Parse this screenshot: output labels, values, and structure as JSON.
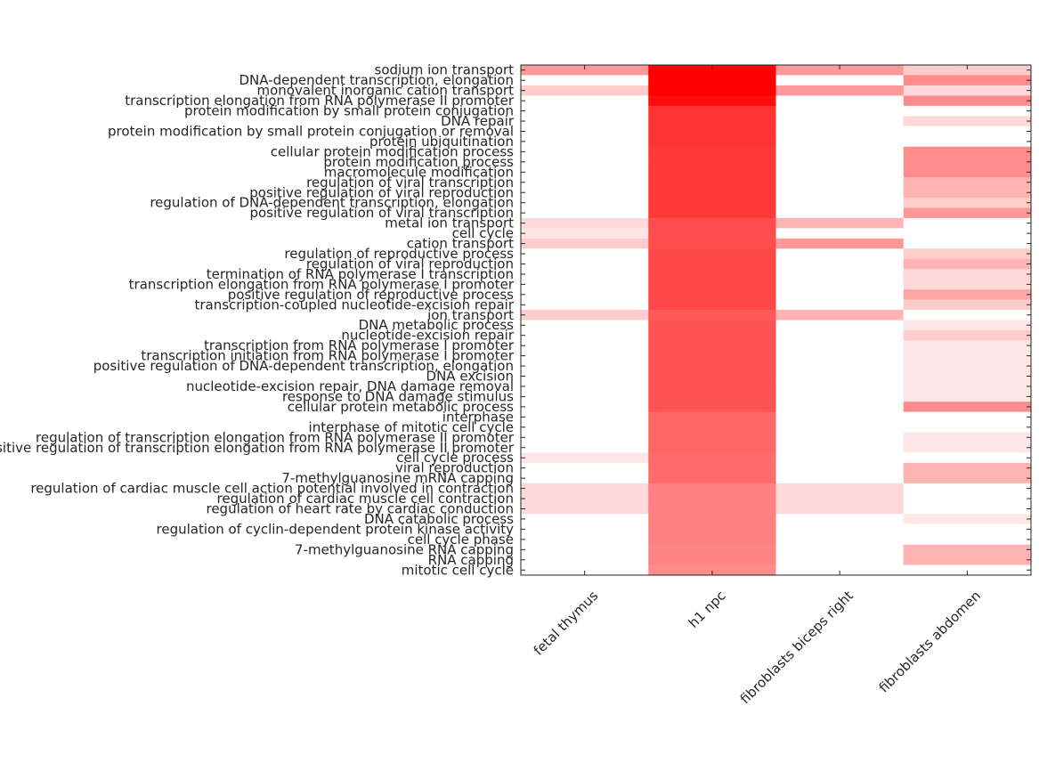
{
  "chart_data": {
    "type": "heatmap",
    "title": "",
    "xlabel": "",
    "ylabel": "",
    "colormap": {
      "low": "#ffffff",
      "high": "#ff0000"
    },
    "value_range": [
      0,
      1
    ],
    "columns": [
      "fetal thymus",
      "h1 npc",
      "fibroblasts biceps right",
      "fibroblasts abdomen"
    ],
    "rows": [
      "sodium ion transport",
      "DNA-dependent transcription, elongation",
      "monovalent inorganic cation transport",
      "transcription elongation from RNA polymerase II promoter",
      "protein modification by small protein conjugation",
      "DNA repair",
      "protein modification by small protein conjugation or removal",
      "protein ubiquitination",
      "cellular protein modification process",
      "protein modification process",
      "macromolecule modification",
      "regulation of viral transcription",
      "positive regulation of viral reproduction",
      "regulation of DNA-dependent transcription, elongation",
      "positive regulation of viral transcription",
      "metal ion transport",
      "cell cycle",
      "cation transport",
      "regulation of reproductive process",
      "regulation of viral reproduction",
      "termination of RNA polymerase I transcription",
      "transcription elongation from RNA polymerase I promoter",
      "positive regulation of reproductive process",
      "transcription-coupled nucleotide-excision repair",
      "ion transport",
      "DNA metabolic process",
      "nucleotide-excision repair",
      "transcription from RNA polymerase I promoter",
      "transcription initiation from RNA polymerase I promoter",
      "positive regulation of DNA-dependent transcription, elongation",
      "DNA excision",
      "nucleotide-excision repair, DNA damage removal",
      "response to DNA damage stimulus",
      "cellular protein metabolic process",
      "interphase",
      "interphase of mitotic cell cycle",
      "regulation of transcription elongation from RNA polymerase II promoter",
      "positive regulation of transcription elongation from RNA polymerase II promoter",
      "cell cycle process",
      "viral reproduction",
      "7-methylguanosine mRNA capping",
      "regulation of cardiac muscle cell action potential involved in contraction",
      "regulation of cardiac muscle cell contraction",
      "regulation of heart rate by cardiac conduction",
      "DNA catabolic process",
      "regulation of cyclin-dependent protein kinase activity",
      "cell cycle phase",
      "7-methylguanosine RNA capping",
      "RNA capping",
      "mitotic cell cycle"
    ],
    "values": [
      [
        0.4,
        1.0,
        0.4,
        0.2
      ],
      [
        0.0,
        1.0,
        0.0,
        0.45
      ],
      [
        0.2,
        1.0,
        0.4,
        0.15
      ],
      [
        0.0,
        0.95,
        0.0,
        0.45
      ],
      [
        0.0,
        0.8,
        0.0,
        0.0
      ],
      [
        0.0,
        0.8,
        0.0,
        0.15
      ],
      [
        0.0,
        0.8,
        0.0,
        0.0
      ],
      [
        0.0,
        0.8,
        0.0,
        0.0
      ],
      [
        0.0,
        0.78,
        0.0,
        0.45
      ],
      [
        0.0,
        0.78,
        0.0,
        0.45
      ],
      [
        0.0,
        0.78,
        0.0,
        0.45
      ],
      [
        0.0,
        0.78,
        0.0,
        0.3
      ],
      [
        0.0,
        0.78,
        0.0,
        0.3
      ],
      [
        0.0,
        0.78,
        0.0,
        0.2
      ],
      [
        0.0,
        0.78,
        0.0,
        0.4
      ],
      [
        0.15,
        0.7,
        0.3,
        0.0
      ],
      [
        0.1,
        0.7,
        0.0,
        0.0
      ],
      [
        0.2,
        0.7,
        0.4,
        0.0
      ],
      [
        0.0,
        0.72,
        0.0,
        0.2
      ],
      [
        0.0,
        0.72,
        0.0,
        0.3
      ],
      [
        0.0,
        0.72,
        0.0,
        0.15
      ],
      [
        0.0,
        0.72,
        0.0,
        0.15
      ],
      [
        0.0,
        0.72,
        0.0,
        0.35
      ],
      [
        0.0,
        0.72,
        0.0,
        0.2
      ],
      [
        0.2,
        0.65,
        0.3,
        0.0
      ],
      [
        0.0,
        0.68,
        0.0,
        0.1
      ],
      [
        0.0,
        0.68,
        0.0,
        0.2
      ],
      [
        0.0,
        0.68,
        0.0,
        0.1
      ],
      [
        0.0,
        0.68,
        0.0,
        0.1
      ],
      [
        0.0,
        0.68,
        0.0,
        0.1
      ],
      [
        0.0,
        0.68,
        0.0,
        0.1
      ],
      [
        0.0,
        0.68,
        0.0,
        0.1
      ],
      [
        0.0,
        0.68,
        0.0,
        0.1
      ],
      [
        0.0,
        0.68,
        0.0,
        0.45
      ],
      [
        0.0,
        0.6,
        0.0,
        0.0
      ],
      [
        0.0,
        0.6,
        0.0,
        0.0
      ],
      [
        0.0,
        0.6,
        0.0,
        0.1
      ],
      [
        0.0,
        0.6,
        0.0,
        0.1
      ],
      [
        0.1,
        0.58,
        0.0,
        0.0
      ],
      [
        0.0,
        0.58,
        0.0,
        0.3
      ],
      [
        0.0,
        0.58,
        0.0,
        0.3
      ],
      [
        0.15,
        0.5,
        0.15,
        0.0
      ],
      [
        0.15,
        0.5,
        0.15,
        0.0
      ],
      [
        0.15,
        0.5,
        0.15,
        0.0
      ],
      [
        0.0,
        0.5,
        0.0,
        0.1
      ],
      [
        0.0,
        0.5,
        0.0,
        0.0
      ],
      [
        0.0,
        0.5,
        0.0,
        0.0
      ],
      [
        0.0,
        0.48,
        0.0,
        0.3
      ],
      [
        0.0,
        0.48,
        0.0,
        0.3
      ],
      [
        0.0,
        0.45,
        0.0,
        0.0
      ]
    ]
  }
}
